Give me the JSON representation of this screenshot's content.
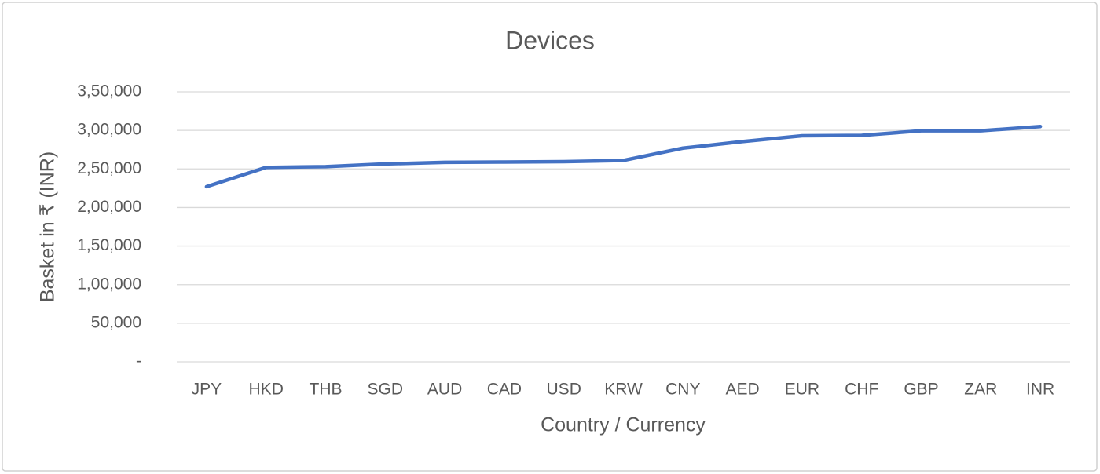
{
  "chart_data": {
    "type": "line",
    "title": "Devices",
    "x_label": "Country / Currency",
    "y_label": "Basket in ₹ (INR)",
    "categories": [
      "JPY",
      "HKD",
      "THB",
      "SGD",
      "AUD",
      "CAD",
      "USD",
      "KRW",
      "CNY",
      "AED",
      "EUR",
      "CHF",
      "GBP",
      "ZAR",
      "INR"
    ],
    "series": [
      {
        "color": "#4472c4",
        "values": [
          227000,
          252000,
          253000,
          256500,
          258500,
          259000,
          259500,
          261000,
          277000,
          285500,
          293000,
          293500,
          299500,
          299500,
          305000
        ]
      }
    ],
    "ylim": [
      0,
      350000
    ],
    "yticks": [
      {
        "value": 0,
        "label": "-"
      },
      {
        "value": 50000,
        "label": "50,000"
      },
      {
        "value": 100000,
        "label": "1,00,000"
      },
      {
        "value": 150000,
        "label": "1,50,000"
      },
      {
        "value": 200000,
        "label": "2,00,000"
      },
      {
        "value": 250000,
        "label": "2,50,000"
      },
      {
        "value": 300000,
        "label": "3,00,000"
      },
      {
        "value": 350000,
        "label": "3,50,000"
      }
    ],
    "grid": true
  }
}
